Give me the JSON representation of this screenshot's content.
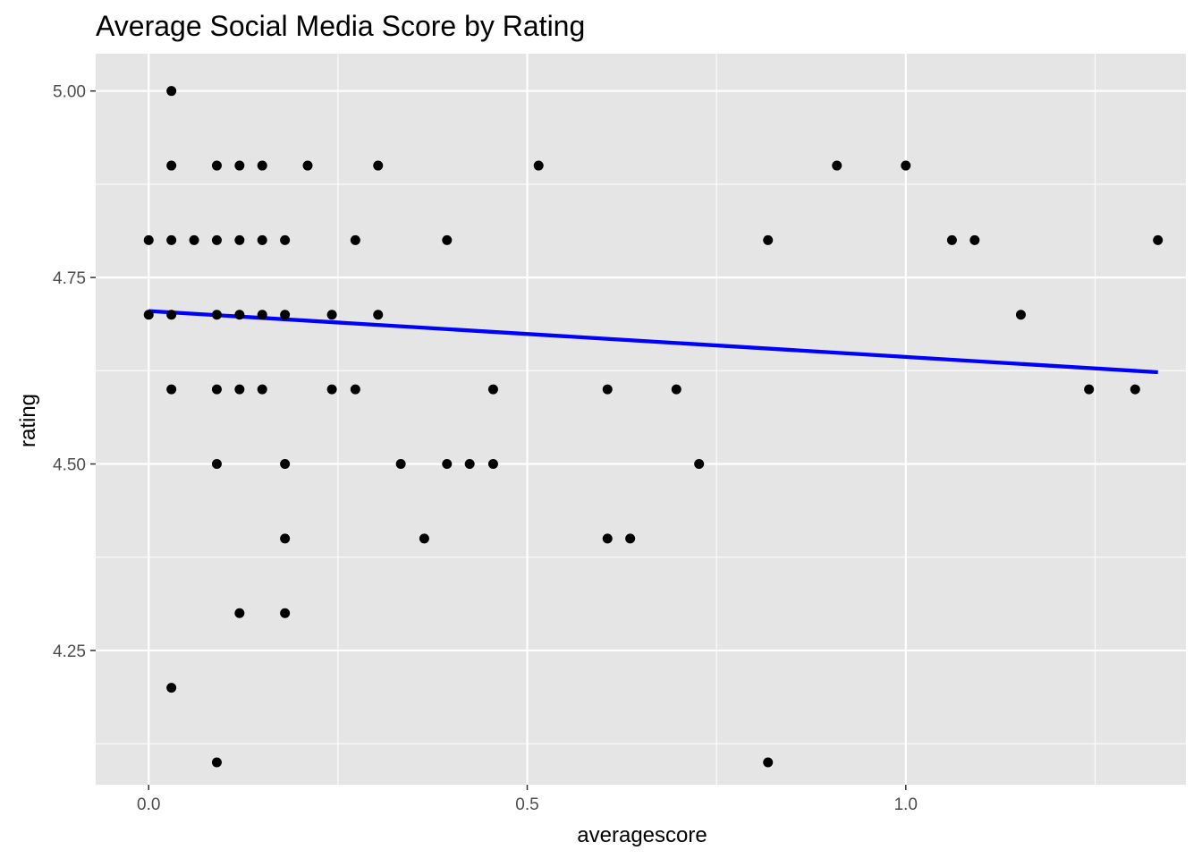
{
  "chart_data": {
    "type": "scatter",
    "title": "Average Social Media Score by Rating",
    "xlabel": "averagescore",
    "ylabel": "rating",
    "xlim": [
      -0.07,
      1.37
    ],
    "ylim": [
      4.07,
      5.05
    ],
    "x_ticks": [
      0.0,
      0.5,
      1.0
    ],
    "x_tick_labels": [
      "0.0",
      "0.5",
      "1.0"
    ],
    "y_ticks": [
      4.25,
      4.5,
      4.75,
      5.0
    ],
    "y_tick_labels": [
      "4.25",
      "4.50",
      "4.75",
      "5.00"
    ],
    "x_minor_ticks": [
      0.25,
      0.75,
      1.25
    ],
    "y_minor_ticks": [
      4.125,
      4.375,
      4.625,
      4.875
    ],
    "grid": true,
    "panel_background": "#e5e5e5",
    "point_color": "#000000",
    "trend_line_color": "#0000ff",
    "trend_line": {
      "x": [
        0.0,
        1.333
      ],
      "y": [
        4.705,
        4.623
      ]
    },
    "points": [
      {
        "x": 0.03,
        "y": 5.0
      },
      {
        "x": 0.03,
        "y": 4.9
      },
      {
        "x": 0.09,
        "y": 4.9
      },
      {
        "x": 0.12,
        "y": 4.9
      },
      {
        "x": 0.15,
        "y": 4.9
      },
      {
        "x": 0.21,
        "y": 4.9
      },
      {
        "x": 0.303,
        "y": 4.9
      },
      {
        "x": 0.515,
        "y": 4.9
      },
      {
        "x": 0.909,
        "y": 4.9
      },
      {
        "x": 1.0,
        "y": 4.9
      },
      {
        "x": 0.0,
        "y": 4.8
      },
      {
        "x": 0.03,
        "y": 4.8
      },
      {
        "x": 0.06,
        "y": 4.8
      },
      {
        "x": 0.09,
        "y": 4.8
      },
      {
        "x": 0.12,
        "y": 4.8
      },
      {
        "x": 0.15,
        "y": 4.8
      },
      {
        "x": 0.18,
        "y": 4.8
      },
      {
        "x": 0.273,
        "y": 4.8
      },
      {
        "x": 0.394,
        "y": 4.8
      },
      {
        "x": 0.818,
        "y": 4.8
      },
      {
        "x": 1.061,
        "y": 4.8
      },
      {
        "x": 1.091,
        "y": 4.8
      },
      {
        "x": 1.333,
        "y": 4.8
      },
      {
        "x": 0.0,
        "y": 4.7
      },
      {
        "x": 0.03,
        "y": 4.7
      },
      {
        "x": 0.09,
        "y": 4.7
      },
      {
        "x": 0.12,
        "y": 4.7
      },
      {
        "x": 0.15,
        "y": 4.7
      },
      {
        "x": 0.18,
        "y": 4.7
      },
      {
        "x": 0.242,
        "y": 4.7
      },
      {
        "x": 0.303,
        "y": 4.7
      },
      {
        "x": 1.152,
        "y": 4.7
      },
      {
        "x": 0.03,
        "y": 4.6
      },
      {
        "x": 0.09,
        "y": 4.6
      },
      {
        "x": 0.12,
        "y": 4.6
      },
      {
        "x": 0.15,
        "y": 4.6
      },
      {
        "x": 0.242,
        "y": 4.6
      },
      {
        "x": 0.273,
        "y": 4.6
      },
      {
        "x": 0.455,
        "y": 4.6
      },
      {
        "x": 0.606,
        "y": 4.6
      },
      {
        "x": 0.697,
        "y": 4.6
      },
      {
        "x": 1.242,
        "y": 4.6
      },
      {
        "x": 1.303,
        "y": 4.6
      },
      {
        "x": 0.09,
        "y": 4.5
      },
      {
        "x": 0.18,
        "y": 4.5
      },
      {
        "x": 0.333,
        "y": 4.5
      },
      {
        "x": 0.394,
        "y": 4.5
      },
      {
        "x": 0.424,
        "y": 4.5
      },
      {
        "x": 0.455,
        "y": 4.5
      },
      {
        "x": 0.727,
        "y": 4.5
      },
      {
        "x": 0.18,
        "y": 4.4
      },
      {
        "x": 0.364,
        "y": 4.4
      },
      {
        "x": 0.606,
        "y": 4.4
      },
      {
        "x": 0.636,
        "y": 4.4
      },
      {
        "x": 0.12,
        "y": 4.3
      },
      {
        "x": 0.18,
        "y": 4.3
      },
      {
        "x": 0.03,
        "y": 4.2
      },
      {
        "x": 0.09,
        "y": 4.1
      },
      {
        "x": 0.818,
        "y": 4.1
      }
    ]
  }
}
